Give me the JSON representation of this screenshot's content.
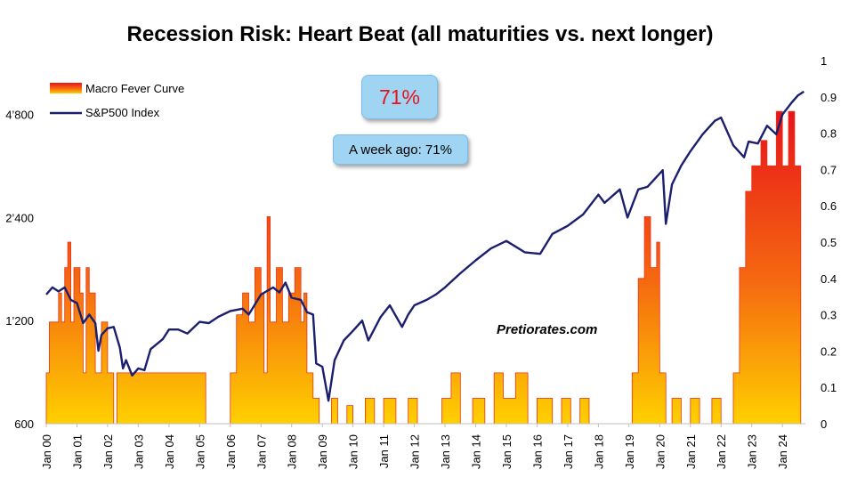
{
  "chart_data": {
    "type": "area",
    "title": "Recession Risk: Heart Beat (all maturities vs. next longer)",
    "watermark": "Pretiorates.com",
    "current_label": "71%",
    "week_ago_label": "A week ago: 71%",
    "legend_placement": "top-left",
    "grid": false,
    "x_tick_labels": [
      "Jan 00",
      "Jan 01",
      "Jan 02",
      "Jan 03",
      "Jan 04",
      "Jan 05",
      "Jan 06",
      "Jan 07",
      "Jan 08",
      "Jan 09",
      "Jan 10",
      "Jan 11",
      "Jan 12",
      "Jan 13",
      "Jan 14",
      "Jan 15",
      "Jan 16",
      "Jan 17",
      "Jan 18",
      "Jan 19",
      "Jan 20",
      "Jan 21",
      "Jan 22",
      "Jan 23",
      "Jan 24"
    ],
    "x_range": [
      2000.0,
      2024.75
    ],
    "left_axis": {
      "scale": "log",
      "ticks": [
        600,
        1200,
        2400,
        4800
      ],
      "tick_labels": [
        "600",
        "1’200",
        "2’400",
        "4’800"
      ],
      "ylim": [
        600,
        6900
      ]
    },
    "right_axis": {
      "ticks": [
        0,
        0.1,
        0.2,
        0.3,
        0.4,
        0.5,
        0.6,
        0.7,
        0.8,
        0.9,
        1
      ],
      "tick_labels": [
        "0",
        "0.1",
        "0.2",
        "0.3",
        "0.4",
        "0.5",
        "0.6",
        "0.7",
        "0.8",
        "0.9",
        "1"
      ],
      "ylim": [
        0,
        1
      ]
    },
    "series": [
      {
        "name": "Macro Fever Curve",
        "axis": "right",
        "color_top": "#e8141a",
        "color_bottom": "#ffc800",
        "points": [
          [
            2000.0,
            0.14
          ],
          [
            2000.08,
            0.14
          ],
          [
            2000.1,
            0.28
          ],
          [
            2000.3,
            0.28
          ],
          [
            2000.4,
            0.36
          ],
          [
            2000.5,
            0.28
          ],
          [
            2000.6,
            0.43
          ],
          [
            2000.7,
            0.5
          ],
          [
            2000.8,
            0.28
          ],
          [
            2000.9,
            0.43
          ],
          [
            2001.0,
            0.43
          ],
          [
            2001.1,
            0.36
          ],
          [
            2001.2,
            0.14
          ],
          [
            2001.3,
            0.43
          ],
          [
            2001.4,
            0.36
          ],
          [
            2001.6,
            0.14
          ],
          [
            2001.8,
            0.28
          ],
          [
            2002.0,
            0.14
          ],
          [
            2002.2,
            0.0
          ],
          [
            2002.3,
            0.14
          ],
          [
            2003.0,
            0.14
          ],
          [
            2003.5,
            0.14
          ],
          [
            2004.0,
            0.14
          ],
          [
            2004.5,
            0.14
          ],
          [
            2005.0,
            0.14
          ],
          [
            2005.2,
            0.0
          ],
          [
            2005.9,
            0.0
          ],
          [
            2006.0,
            0.14
          ],
          [
            2006.2,
            0.3
          ],
          [
            2006.4,
            0.36
          ],
          [
            2006.6,
            0.28
          ],
          [
            2006.8,
            0.43
          ],
          [
            2007.0,
            0.36
          ],
          [
            2007.1,
            0.14
          ],
          [
            2007.2,
            0.57
          ],
          [
            2007.3,
            0.28
          ],
          [
            2007.5,
            0.43
          ],
          [
            2007.7,
            0.28
          ],
          [
            2007.9,
            0.36
          ],
          [
            2008.1,
            0.43
          ],
          [
            2008.3,
            0.28
          ],
          [
            2008.4,
            0.36
          ],
          [
            2008.5,
            0.14
          ],
          [
            2008.7,
            0.07
          ],
          [
            2008.9,
            0.0
          ],
          [
            2009.0,
            0.0
          ],
          [
            2009.3,
            0.07
          ],
          [
            2009.5,
            0.0
          ],
          [
            2009.8,
            0.05
          ],
          [
            2010.0,
            0.0
          ],
          [
            2010.4,
            0.07
          ],
          [
            2010.7,
            0.0
          ],
          [
            2011.0,
            0.07
          ],
          [
            2011.4,
            0.0
          ],
          [
            2011.8,
            0.07
          ],
          [
            2012.1,
            0.0
          ],
          [
            2012.5,
            0.0
          ],
          [
            2012.9,
            0.07
          ],
          [
            2013.2,
            0.14
          ],
          [
            2013.5,
            0.0
          ],
          [
            2013.9,
            0.07
          ],
          [
            2014.3,
            0.0
          ],
          [
            2014.6,
            0.14
          ],
          [
            2014.9,
            0.07
          ],
          [
            2015.3,
            0.14
          ],
          [
            2015.7,
            0.0
          ],
          [
            2016.0,
            0.07
          ],
          [
            2016.5,
            0.0
          ],
          [
            2016.8,
            0.07
          ],
          [
            2017.1,
            0.0
          ],
          [
            2017.4,
            0.07
          ],
          [
            2017.7,
            0.0
          ],
          [
            2018.0,
            0.0
          ],
          [
            2018.5,
            0.0
          ],
          [
            2019.0,
            0.0
          ],
          [
            2019.1,
            0.14
          ],
          [
            2019.3,
            0.4
          ],
          [
            2019.5,
            0.57
          ],
          [
            2019.7,
            0.43
          ],
          [
            2019.9,
            0.5
          ],
          [
            2020.0,
            0.14
          ],
          [
            2020.2,
            0.0
          ],
          [
            2020.4,
            0.07
          ],
          [
            2020.7,
            0.0
          ],
          [
            2021.0,
            0.07
          ],
          [
            2021.3,
            0.0
          ],
          [
            2021.7,
            0.07
          ],
          [
            2022.0,
            0.0
          ],
          [
            2022.2,
            0.0
          ],
          [
            2022.4,
            0.14
          ],
          [
            2022.6,
            0.43
          ],
          [
            2022.8,
            0.64
          ],
          [
            2023.0,
            0.71
          ],
          [
            2023.3,
            0.78
          ],
          [
            2023.5,
            0.71
          ],
          [
            2023.8,
            0.86
          ],
          [
            2024.0,
            0.71
          ],
          [
            2024.2,
            0.86
          ],
          [
            2024.4,
            0.71
          ],
          [
            2024.6,
            0.0
          ]
        ]
      },
      {
        "name": "S&P500 Index",
        "axis": "left",
        "color": "#1b1f6e",
        "points": [
          [
            2000.0,
            1430
          ],
          [
            2000.2,
            1500
          ],
          [
            2000.4,
            1460
          ],
          [
            2000.6,
            1500
          ],
          [
            2000.8,
            1380
          ],
          [
            2001.0,
            1350
          ],
          [
            2001.2,
            1180
          ],
          [
            2001.4,
            1250
          ],
          [
            2001.6,
            1180
          ],
          [
            2001.7,
            980
          ],
          [
            2001.8,
            1090
          ],
          [
            2002.0,
            1140
          ],
          [
            2002.2,
            1150
          ],
          [
            2002.4,
            1000
          ],
          [
            2002.5,
            870
          ],
          [
            2002.6,
            920
          ],
          [
            2002.8,
            830
          ],
          [
            2003.0,
            870
          ],
          [
            2003.2,
            860
          ],
          [
            2003.4,
            990
          ],
          [
            2003.8,
            1060
          ],
          [
            2004.0,
            1130
          ],
          [
            2004.3,
            1130
          ],
          [
            2004.6,
            1100
          ],
          [
            2005.0,
            1190
          ],
          [
            2005.3,
            1180
          ],
          [
            2005.6,
            1230
          ],
          [
            2006.0,
            1280
          ],
          [
            2006.4,
            1300
          ],
          [
            2006.6,
            1250
          ],
          [
            2007.0,
            1430
          ],
          [
            2007.4,
            1500
          ],
          [
            2007.6,
            1450
          ],
          [
            2007.8,
            1550
          ],
          [
            2008.0,
            1400
          ],
          [
            2008.3,
            1380
          ],
          [
            2008.5,
            1270
          ],
          [
            2008.7,
            1250
          ],
          [
            2008.8,
            900
          ],
          [
            2009.0,
            880
          ],
          [
            2009.2,
            700
          ],
          [
            2009.4,
            920
          ],
          [
            2009.7,
            1050
          ],
          [
            2010.0,
            1120
          ],
          [
            2010.3,
            1200
          ],
          [
            2010.5,
            1050
          ],
          [
            2010.9,
            1230
          ],
          [
            2011.2,
            1330
          ],
          [
            2011.6,
            1150
          ],
          [
            2011.8,
            1250
          ],
          [
            2012.0,
            1330
          ],
          [
            2012.4,
            1380
          ],
          [
            2012.7,
            1430
          ],
          [
            2013.0,
            1500
          ],
          [
            2013.5,
            1650
          ],
          [
            2014.0,
            1800
          ],
          [
            2014.5,
            1950
          ],
          [
            2015.0,
            2050
          ],
          [
            2015.6,
            1900
          ],
          [
            2016.1,
            1880
          ],
          [
            2016.5,
            2150
          ],
          [
            2017.0,
            2270
          ],
          [
            2017.5,
            2450
          ],
          [
            2018.0,
            2800
          ],
          [
            2018.2,
            2650
          ],
          [
            2018.7,
            2900
          ],
          [
            2018.95,
            2400
          ],
          [
            2019.3,
            2900
          ],
          [
            2019.6,
            2950
          ],
          [
            2020.1,
            3300
          ],
          [
            2020.2,
            2300
          ],
          [
            2020.4,
            3000
          ],
          [
            2020.7,
            3400
          ],
          [
            2021.0,
            3750
          ],
          [
            2021.4,
            4200
          ],
          [
            2021.8,
            4600
          ],
          [
            2022.0,
            4700
          ],
          [
            2022.4,
            3900
          ],
          [
            2022.75,
            3600
          ],
          [
            2022.9,
            4000
          ],
          [
            2023.2,
            3950
          ],
          [
            2023.5,
            4450
          ],
          [
            2023.8,
            4200
          ],
          [
            2024.0,
            4800
          ],
          [
            2024.3,
            5200
          ],
          [
            2024.5,
            5450
          ],
          [
            2024.7,
            5600
          ]
        ]
      }
    ]
  }
}
